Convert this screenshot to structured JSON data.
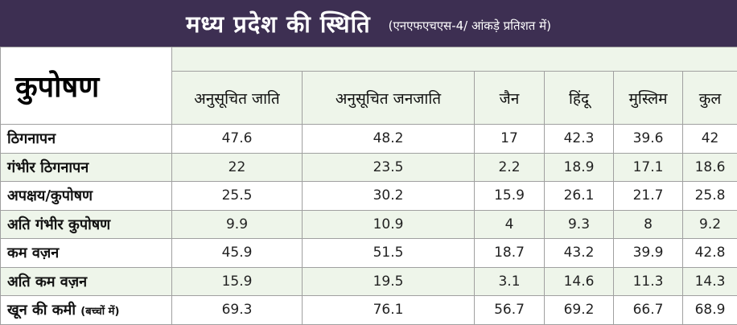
{
  "header": {
    "title": "मध्य प्रदेश की स्थिति",
    "subtitle": "(एनएफएचएस-4/ आंकड़े प्रतिशत में)"
  },
  "chart_data": {
    "type": "table",
    "corner_label": "कुपोषण",
    "columns": [
      "अनुसूचित जाति",
      "अनुसूचित जनजाति",
      "जैन",
      "हिंदू",
      "मुस्लिम",
      "कुल"
    ],
    "rows": [
      {
        "label": "ठिगनापन",
        "label_note": "",
        "values": [
          "47.6",
          "48.2",
          "17",
          "42.3",
          "39.6",
          "42"
        ]
      },
      {
        "label": "गंभीर ठिगनापन",
        "label_note": "",
        "values": [
          "22",
          "23.5",
          "2.2",
          "18.9",
          "17.1",
          "18.6"
        ]
      },
      {
        "label": "अपक्षय/कुपोषण",
        "label_note": "",
        "values": [
          "25.5",
          "30.2",
          "15.9",
          "26.1",
          "21.7",
          "25.8"
        ]
      },
      {
        "label": "अति गंभीर कुपोषण",
        "label_note": "",
        "values": [
          "9.9",
          "10.9",
          "4",
          "9.3",
          "8",
          "9.2"
        ]
      },
      {
        "label": "कम वज़न",
        "label_note": "",
        "values": [
          "45.9",
          "51.5",
          "18.7",
          "43.2",
          "39.9",
          "42.8"
        ]
      },
      {
        "label": "अति कम वज़न",
        "label_note": "",
        "values": [
          "15.9",
          "19.5",
          "3.1",
          "14.6",
          "11.3",
          "14.3"
        ]
      },
      {
        "label": "खून की कमी",
        "label_note": "(बच्चों में)",
        "values": [
          "69.3",
          "76.1",
          "56.7",
          "69.2",
          "66.7",
          "68.9"
        ]
      }
    ]
  },
  "colors": {
    "title_bar": "#3d2f52",
    "band": "#eef5ea",
    "border": "#a0a0a0"
  }
}
